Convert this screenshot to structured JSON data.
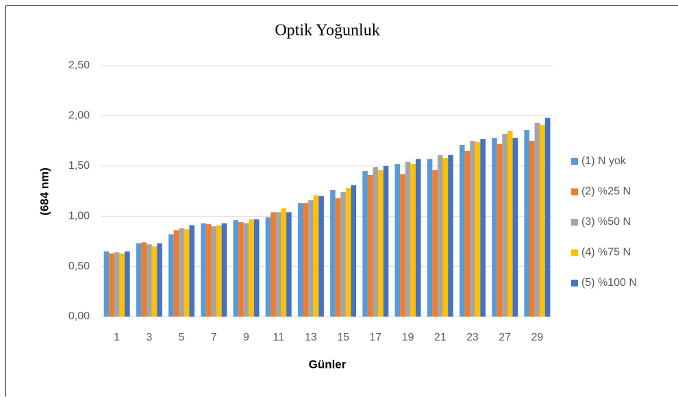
{
  "chart_data": {
    "type": "bar",
    "title": "Optik Yoğunluk",
    "x_label": "Günler",
    "y_label": "(684 nm)",
    "categories": [
      "1",
      "3",
      "5",
      "7",
      "9",
      "11",
      "13",
      "15",
      "17",
      "19",
      "21",
      "23",
      "27",
      "29"
    ],
    "series": [
      {
        "name": "(1) N yok",
        "color": "#5b9bd5",
        "values": [
          0.65,
          0.73,
          0.82,
          0.93,
          0.96,
          0.99,
          1.13,
          1.26,
          1.45,
          1.52,
          1.57,
          1.71,
          1.78,
          1.86
        ]
      },
      {
        "name": "(2) %25 N",
        "color": "#ed7d31",
        "values": [
          0.63,
          0.74,
          0.86,
          0.92,
          0.94,
          1.04,
          1.13,
          1.18,
          1.41,
          1.42,
          1.46,
          1.65,
          1.72,
          1.75
        ]
      },
      {
        "name": "(3) %50 N",
        "color": "#a5a5a5",
        "values": [
          0.64,
          0.72,
          0.88,
          0.9,
          0.93,
          1.04,
          1.16,
          1.24,
          1.49,
          1.54,
          1.61,
          1.75,
          1.82,
          1.93
        ]
      },
      {
        "name": "(4) %75 N",
        "color": "#ffc000",
        "values": [
          0.63,
          0.7,
          0.87,
          0.91,
          0.97,
          1.08,
          1.21,
          1.28,
          1.46,
          1.52,
          1.58,
          1.74,
          1.85,
          1.91
        ]
      },
      {
        "name": "(5) %100 N",
        "color": "#4472c4",
        "values": [
          0.65,
          0.73,
          0.91,
          0.93,
          0.97,
          1.04,
          1.2,
          1.31,
          1.5,
          1.57,
          1.61,
          1.77,
          1.78,
          1.98
        ]
      }
    ],
    "ylim": [
      0,
      2.5
    ],
    "yticks": [
      {
        "value": 0,
        "label": "0,00"
      },
      {
        "value": 0.5,
        "label": "0,50"
      },
      {
        "value": 1,
        "label": "1,00"
      },
      {
        "value": 1.5,
        "label": "1,50"
      },
      {
        "value": 2,
        "label": "2,00"
      },
      {
        "value": 2.5,
        "label": "2,50"
      }
    ],
    "grid": true,
    "legend": "right"
  }
}
